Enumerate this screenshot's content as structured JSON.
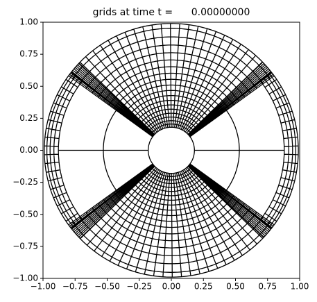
{
  "chart_data": {
    "type": "mesh",
    "title": "grids at time t =      0.00000000",
    "xlim": [
      -1,
      1
    ],
    "ylim": [
      -1,
      1
    ],
    "xticks": [
      {
        "value": -1,
        "label": "−1.00"
      },
      {
        "value": -0.75,
        "label": "−0.75"
      },
      {
        "value": -0.5,
        "label": "−0.50"
      },
      {
        "value": -0.25,
        "label": "−0.25"
      },
      {
        "value": 0,
        "label": "0.00"
      },
      {
        "value": 0.25,
        "label": "0.25"
      },
      {
        "value": 0.5,
        "label": "0.50"
      },
      {
        "value": 0.75,
        "label": "0.75"
      },
      {
        "value": 1,
        "label": "1.00"
      }
    ],
    "yticks": [
      {
        "value": -1,
        "label": "−1.00"
      },
      {
        "value": -0.75,
        "label": "−0.75"
      },
      {
        "value": -0.5,
        "label": "−0.50"
      },
      {
        "value": -0.25,
        "label": "−0.25"
      },
      {
        "value": 0,
        "label": "0.00"
      },
      {
        "value": 0.25,
        "label": "0.25"
      },
      {
        "value": 0.5,
        "label": "0.50"
      },
      {
        "value": 0.75,
        "label": "0.75"
      },
      {
        "value": 1,
        "label": "1.00"
      }
    ],
    "color": "#000000"
  }
}
